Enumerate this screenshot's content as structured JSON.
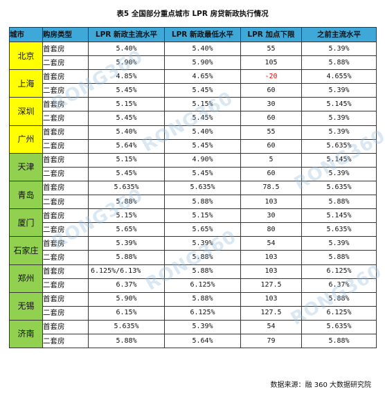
{
  "title": "表5 全国部分重点城市 LPR 房贷新政执行情况",
  "headers": {
    "city": "城市",
    "type": "购房类型",
    "main": "LPR 新政主流水平",
    "lowest": "LPR 新政最低水平",
    "cap": "LPR 加点下限",
    "previous": "之前主流水平"
  },
  "rows": [
    {
      "city": "北京",
      "first": {
        "type": "首套房",
        "main": "5.40%",
        "lowest": "5.40%",
        "cap": "55",
        "previous": "5.39%"
      },
      "second": {
        "type": "二套房",
        "main": "5.90%",
        "lowest": "5.90%",
        "cap": "105",
        "previous": "5.88%"
      }
    },
    {
      "city": "上海",
      "first": {
        "type": "首套房",
        "main": "4.85%",
        "lowest": "4.65%",
        "cap": "-20",
        "previous": "4.655%"
      },
      "second": {
        "type": "二套房",
        "main": "5.45%",
        "lowest": "5.45%",
        "cap": "60",
        "previous": "5.39%"
      }
    },
    {
      "city": "深圳",
      "first": {
        "type": "首套房",
        "main": "5.15%",
        "lowest": "5.15%",
        "cap": "30",
        "previous": "5.145%"
      },
      "second": {
        "type": "二套房",
        "main": "5.45%",
        "lowest": "5.45%",
        "cap": "60",
        "previous": "5.39%"
      }
    },
    {
      "city": "广州",
      "first": {
        "type": "首套房",
        "main": "5.40%",
        "lowest": "5.40%",
        "cap": "55",
        "previous": "5.39%"
      },
      "second": {
        "type": "二套房",
        "main": "5.64%",
        "lowest": "5.45%",
        "cap": "60",
        "previous": "5.635%"
      }
    },
    {
      "city": "天津",
      "first": {
        "type": "首套房",
        "main": "5.15%",
        "lowest": "4.90%",
        "cap": "5",
        "previous": "5.145%"
      },
      "second": {
        "type": "二套房",
        "main": "5.45%",
        "lowest": "5.45%",
        "cap": "60",
        "previous": "5.39%"
      }
    },
    {
      "city": "青岛",
      "first": {
        "type": "首套房",
        "main": "5.635%",
        "lowest": "5.635%",
        "cap": "78.5",
        "previous": "5.635%"
      },
      "second": {
        "type": "二套房",
        "main": "5.88%",
        "lowest": "5.88%",
        "cap": "103",
        "previous": "5.88%"
      }
    },
    {
      "city": "厦门",
      "first": {
        "type": "首套房",
        "main": "5.15%",
        "lowest": "5.15%",
        "cap": "30",
        "previous": "5.145%"
      },
      "second": {
        "type": "二套房",
        "main": "5.65%",
        "lowest": "5.65%",
        "cap": "80",
        "previous": "5.635%"
      }
    },
    {
      "city": "石家庄",
      "first": {
        "type": "首套房",
        "main": "5.39%",
        "lowest": "5.39%",
        "cap": "54",
        "previous": "5.39%"
      },
      "second": {
        "type": "二套房",
        "main": "5.88%",
        "lowest": "5.88%",
        "cap": "103",
        "previous": "5.88%"
      }
    },
    {
      "city": "郑州",
      "first": {
        "type": "首套房",
        "main": "6.125%/6.13%",
        "lowest": "5.88%",
        "cap": "103",
        "previous": "6.125%"
      },
      "second": {
        "type": "二套房",
        "main": "6.37%",
        "lowest": "6.125%",
        "cap": "127.5",
        "previous": "6.37%"
      }
    },
    {
      "city": "无锡",
      "first": {
        "type": "首套房",
        "main": "5.90%",
        "lowest": "5.88%",
        "cap": "103",
        "previous": "5.88%"
      },
      "second": {
        "type": "二套房",
        "main": "6.15%",
        "lowest": "6.125%",
        "cap": "127.5",
        "previous": "6.125%"
      }
    },
    {
      "city": "济南",
      "first": {
        "type": "首套房",
        "main": "5.635%",
        "lowest": "5.39%",
        "cap": "54",
        "previous": "5.635%"
      },
      "second": {
        "type": "二套房",
        "main": "5.88%",
        "lowest": "5.64%",
        "cap": "79",
        "previous": "5.88%"
      }
    }
  ],
  "source": "数据来源：融 360 大数据研究院",
  "watermark": "RONG360",
  "colors": {
    "header": "#3ea8d9",
    "tier1": "#ffff00",
    "others": "#92d050",
    "negative": "#ff0000"
  }
}
